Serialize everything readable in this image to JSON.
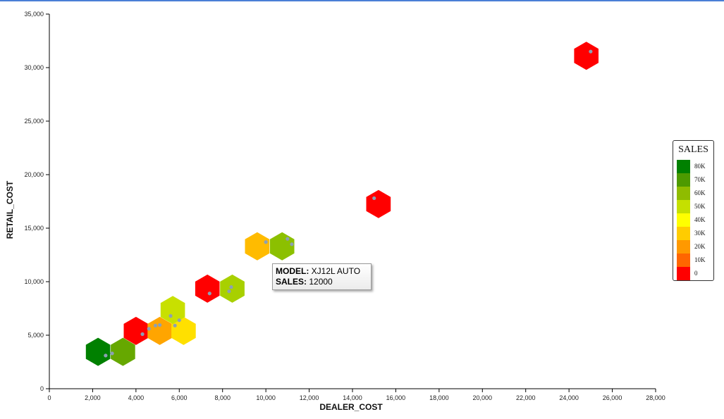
{
  "chart_data": {
    "type": "scatter",
    "xlabel": "DEALER_COST",
    "ylabel": "RETAIL_COST",
    "xlim": [
      0,
      28000
    ],
    "ylim": [
      0,
      35000
    ],
    "x_ticks": [
      0,
      2000,
      4000,
      6000,
      8000,
      10000,
      12000,
      14000,
      16000,
      18000,
      20000,
      22000,
      24000,
      26000,
      28000
    ],
    "x_tick_labels": [
      "0",
      "2,000",
      "4,000",
      "6,000",
      "8,000",
      "10,000",
      "12,000",
      "14,000",
      "16,000",
      "18,000",
      "20,000",
      "22,000",
      "24,000",
      "26,000",
      "28,000"
    ],
    "y_ticks": [
      0,
      5000,
      10000,
      15000,
      20000,
      25000,
      30000,
      35000
    ],
    "y_tick_labels": [
      "0",
      "5,000",
      "10,000",
      "15,000",
      "20,000",
      "25,000",
      "30,000",
      "35,000"
    ],
    "grid": false,
    "hexbins": [
      {
        "x": 2250,
        "y": 3450,
        "color": "#008000"
      },
      {
        "x": 3400,
        "y": 3450,
        "color": "#66a800"
      },
      {
        "x": 4000,
        "y": 5400,
        "color": "#ff0000"
      },
      {
        "x": 5100,
        "y": 5400,
        "color": "#ffa500"
      },
      {
        "x": 6200,
        "y": 5400,
        "color": "#ffe000"
      },
      {
        "x": 5700,
        "y": 7350,
        "color": "#c8e000"
      },
      {
        "x": 7300,
        "y": 9350,
        "color": "#ff0000"
      },
      {
        "x": 8450,
        "y": 9350,
        "color": "#a8d000"
      },
      {
        "x": 9600,
        "y": 13300,
        "color": "#ffbb00"
      },
      {
        "x": 10750,
        "y": 13300,
        "color": "#8cc000"
      },
      {
        "x": 15200,
        "y": 17250,
        "color": "#ff0000"
      },
      {
        "x": 24800,
        "y": 31100,
        "color": "#ff0000"
      }
    ],
    "points": [
      {
        "x": 2600,
        "y": 3100
      },
      {
        "x": 2900,
        "y": 3300
      },
      {
        "x": 4300,
        "y": 5100
      },
      {
        "x": 4600,
        "y": 5600
      },
      {
        "x": 4900,
        "y": 5900
      },
      {
        "x": 5100,
        "y": 5950
      },
      {
        "x": 5600,
        "y": 6800
      },
      {
        "x": 5800,
        "y": 5900
      },
      {
        "x": 6000,
        "y": 6400
      },
      {
        "x": 7400,
        "y": 8900
      },
      {
        "x": 8300,
        "y": 9100
      },
      {
        "x": 8400,
        "y": 9500
      },
      {
        "x": 10000,
        "y": 13700
      },
      {
        "x": 11000,
        "y": 14000
      },
      {
        "x": 11200,
        "y": 13500
      },
      {
        "x": 15000,
        "y": 17800
      },
      {
        "x": 25000,
        "y": 31500
      }
    ],
    "legend": {
      "title": "SALES",
      "position": "right",
      "items": [
        {
          "label": "80K",
          "color": "#008000"
        },
        {
          "label": "70K",
          "color": "#4d9a00"
        },
        {
          "label": "60K",
          "color": "#8fbc00"
        },
        {
          "label": "50K",
          "color": "#c5e000"
        },
        {
          "label": "40K",
          "color": "#ffff00"
        },
        {
          "label": "30K",
          "color": "#ffcc00"
        },
        {
          "label": "20K",
          "color": "#ff9900"
        },
        {
          "label": "10K",
          "color": "#ff6600"
        },
        {
          "label": "0",
          "color": "#ff0000"
        }
      ]
    }
  },
  "tooltip": {
    "model_label": "MODEL:",
    "model_value": "XJ12L AUTO",
    "sales_label": "SALES:",
    "sales_value": "12000"
  },
  "colors": {
    "top_border": "#4a7fd6",
    "point": "#8ca0b4"
  }
}
